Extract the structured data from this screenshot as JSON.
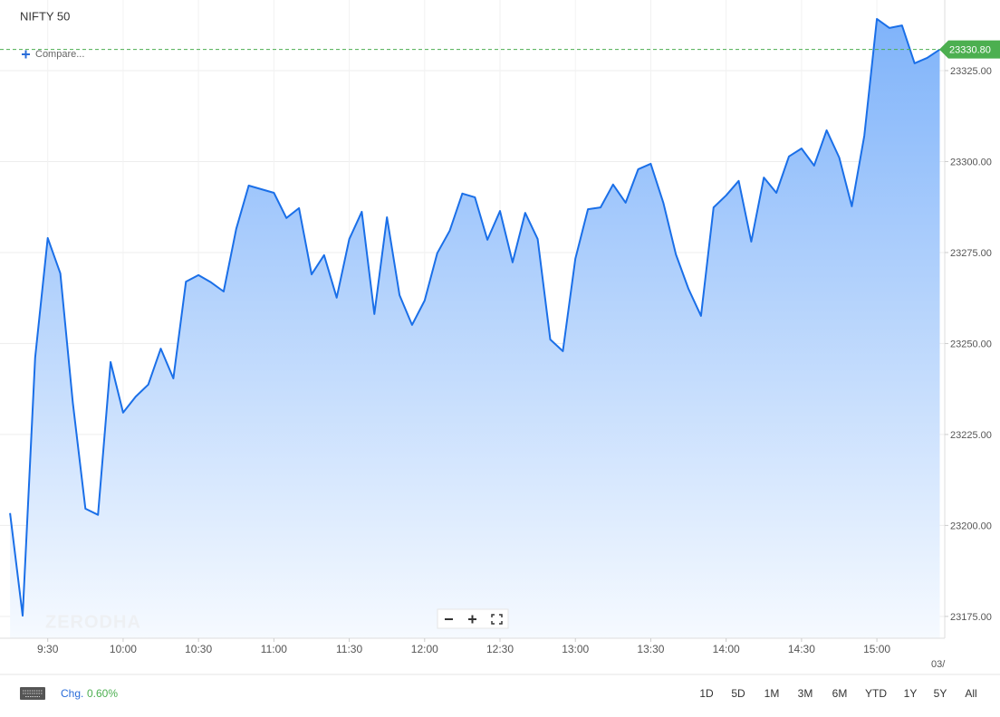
{
  "chart_data": {
    "type": "area",
    "title": "NIFTY 50",
    "compare_label": "Compare...",
    "watermark": "ZERODHA",
    "x_end_label": "03/",
    "x": [
      "9:15",
      "9:20",
      "9:25",
      "9:30",
      "9:35",
      "9:40",
      "9:45",
      "9:50",
      "9:55",
      "10:00",
      "10:05",
      "10:10",
      "10:15",
      "10:20",
      "10:25",
      "10:30",
      "10:35",
      "10:40",
      "10:45",
      "10:50",
      "10:55",
      "11:00",
      "11:05",
      "11:10",
      "11:15",
      "11:20",
      "11:25",
      "11:30",
      "11:35",
      "11:40",
      "11:45",
      "11:50",
      "11:55",
      "12:00",
      "12:05",
      "12:10",
      "12:15",
      "12:20",
      "12:25",
      "12:30",
      "12:35",
      "12:40",
      "12:45",
      "12:50",
      "12:55",
      "13:00",
      "13:05",
      "13:10",
      "13:15",
      "13:20",
      "13:25",
      "13:30",
      "13:35",
      "13:40",
      "13:45",
      "13:50",
      "13:55",
      "14:00",
      "14:05",
      "14:10",
      "14:15",
      "14:20",
      "14:25",
      "14:30",
      "14:35",
      "14:40",
      "14:45",
      "14:50",
      "14:55",
      "15:00",
      "15:05",
      "15:10",
      "15:15",
      "15:20",
      "15:25"
    ],
    "series": [
      {
        "color": "#1a6fe8",
        "values": [
          23203.4,
          23175.2,
          23246.1,
          23279,
          23269.3,
          23233.7,
          23204.6,
          23202.9,
          23244.9,
          23231,
          23235.4,
          23238.7,
          23248.6,
          23240.4,
          23267,
          23268.8,
          23266.8,
          23264.3,
          23281.5,
          23293.4,
          23292.4,
          23291.4,
          23284.5,
          23287.2,
          23269,
          23274.3,
          23262.6,
          23278.7,
          23286.2,
          23258.1,
          23284.7,
          23263.3,
          23255.1,
          23261.8,
          23274.8,
          23281,
          23291.2,
          23290.2,
          23278.5,
          23286.4,
          23272.3,
          23285.9,
          23278.7,
          23251.1,
          23247.9,
          23273.3,
          23286.9,
          23287.4,
          23293.7,
          23288.7,
          23297.9,
          23299.4,
          23288.7,
          23274.5,
          23265,
          23257.6,
          23287.4,
          23290.7,
          23294.7,
          23278,
          23295.6,
          23291.4,
          23301.4,
          23303.6,
          23298.9,
          23308.6,
          23301.1,
          23287.7,
          23307.1,
          23339.2,
          23336.7,
          23337.4,
          23327,
          23328.5,
          23330.8
        ]
      }
    ],
    "last_value_label": "23330.80",
    "last_value_color": "#4caf50",
    "xlim": [
      "9:11",
      "15:27"
    ],
    "xticks": [
      "9:30",
      "10:00",
      "10:30",
      "11:00",
      "11:30",
      "12:00",
      "12:30",
      "13:00",
      "13:30",
      "14:00",
      "14:30",
      "15:00"
    ],
    "ylim": [
      23169,
      23344.4
    ],
    "yticks": [
      {
        "value": 23175,
        "label": "23175.00"
      },
      {
        "value": 23200,
        "label": "23200.00"
      },
      {
        "value": 23225,
        "label": "23225.00"
      },
      {
        "value": 23250,
        "label": "23250.00"
      },
      {
        "value": 23275,
        "label": "23275.00"
      },
      {
        "value": 23300,
        "label": "23300.00"
      },
      {
        "value": 23325,
        "label": "23325.00"
      }
    ],
    "grid": true
  },
  "toolbar": {
    "change_label": "Chg.",
    "change_value": "0.60%",
    "ranges": [
      "1D",
      "5D",
      "1M",
      "3M",
      "6M",
      "YTD",
      "1Y",
      "5Y",
      "All"
    ]
  }
}
